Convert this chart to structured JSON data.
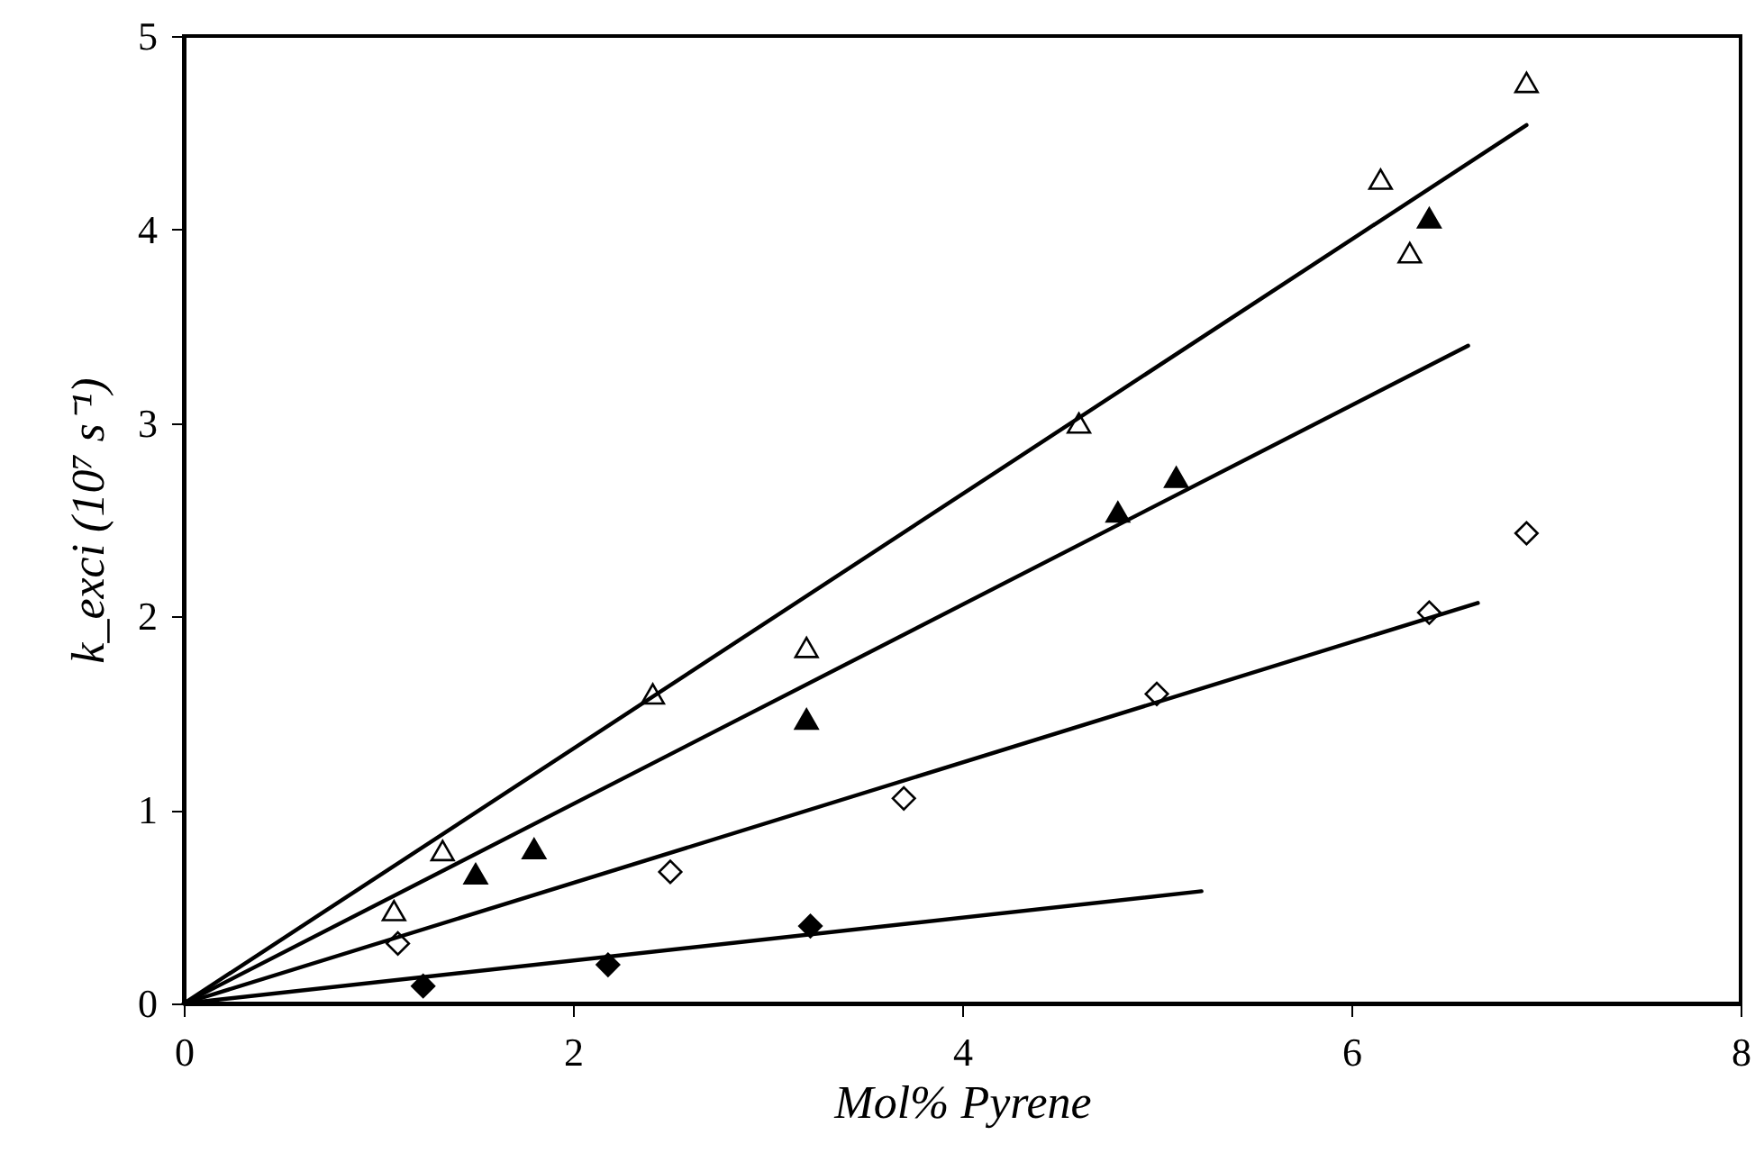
{
  "chart_data": {
    "type": "scatter",
    "xlabel": "Mol% Pyrene",
    "ylabel": "k_exci (10⁷ s⁻¹)",
    "xlim": [
      0,
      8
    ],
    "xticks": [
      0,
      2,
      4,
      6,
      8
    ],
    "ylim": [
      0,
      5
    ],
    "yticks": [
      0,
      1,
      2,
      3,
      4,
      5
    ],
    "grid": false,
    "series": [
      {
        "color": "#ffffff",
        "marker": "triangle",
        "x": [
          1.08,
          1.33,
          2.41,
          3.2,
          4.6,
          6.15,
          6.3,
          6.9
        ],
        "values": [
          0.48,
          0.79,
          1.6,
          1.84,
          3.0,
          4.26,
          3.88,
          4.76
        ]
      },
      {
        "color": "#000000",
        "marker": "triangle",
        "x": [
          1.5,
          1.8,
          3.2,
          4.8,
          5.1,
          6.4
        ],
        "values": [
          0.67,
          0.8,
          1.47,
          2.54,
          2.72,
          4.06
        ]
      },
      {
        "color": "#ffffff",
        "marker": "diamond",
        "x": [
          1.1,
          2.5,
          3.7,
          5.0,
          6.4,
          6.9
        ],
        "values": [
          0.31,
          0.68,
          1.06,
          1.6,
          2.02,
          2.43
        ]
      },
      {
        "color": "#000000",
        "marker": "diamond",
        "x": [
          1.23,
          2.18,
          3.22
        ],
        "values": [
          0.09,
          0.2,
          0.4
        ]
      },
      {
        "type": "line",
        "color": "#000000",
        "marker": "none",
        "line_style": "solid",
        "x": [
          0,
          6.9
        ],
        "values": [
          0,
          4.54
        ]
      },
      {
        "type": "line",
        "color": "#000000",
        "marker": "none",
        "line_style": "solid",
        "x": [
          0,
          6.6
        ],
        "values": [
          0,
          3.4
        ]
      },
      {
        "type": "line",
        "color": "#000000",
        "marker": "none",
        "line_style": "solid",
        "x": [
          0,
          6.65
        ],
        "values": [
          0,
          2.07
        ]
      },
      {
        "type": "line",
        "color": "#000000",
        "marker": "none",
        "line_style": "solid",
        "x": [
          0,
          5.23
        ],
        "values": [
          0,
          0.58
        ]
      }
    ]
  }
}
